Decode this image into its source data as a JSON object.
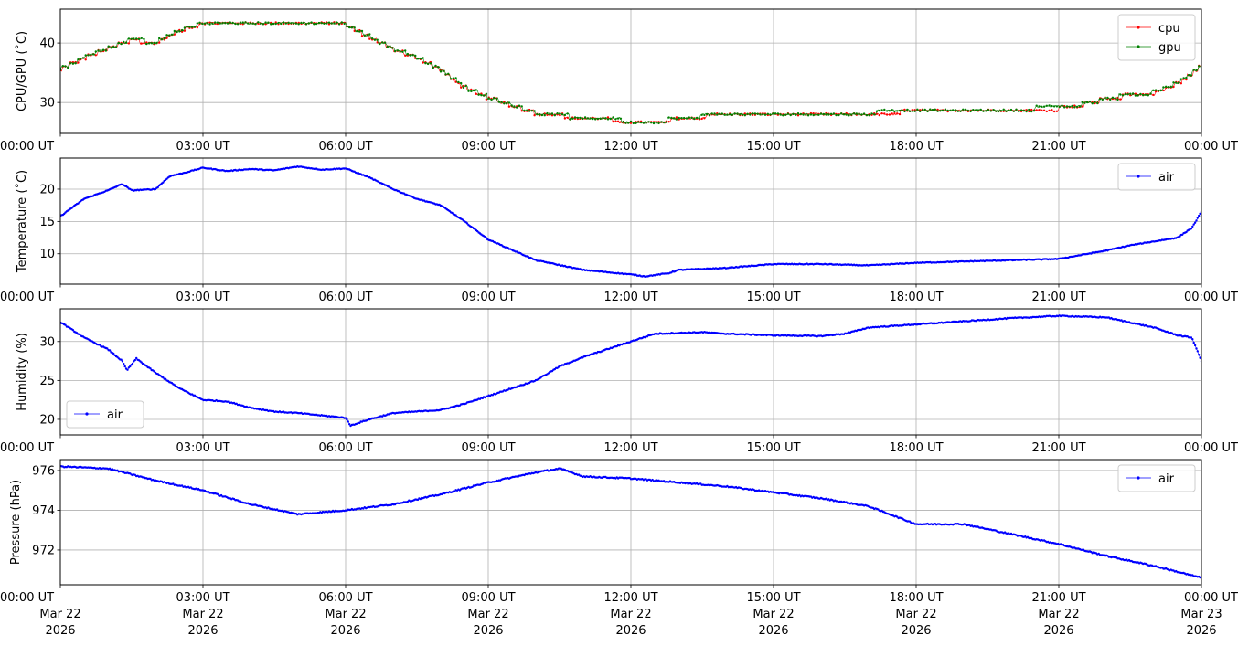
{
  "colors": {
    "cpu": "#ff0000",
    "gpu": "#008000",
    "air": "#0000ff",
    "grid": "#b0b0b0"
  },
  "x_tick_labels": [
    "00:00 UT",
    "03:00 UT",
    "06:00 UT",
    "09:00 UT",
    "12:00 UT",
    "15:00 UT",
    "18:00 UT",
    "21:00 UT",
    "00:00 UT"
  ],
  "x_tick_date_lines": [
    [
      "Mar 22",
      "2026"
    ],
    [
      "Mar 22",
      "2026"
    ],
    [
      "Mar 22",
      "2026"
    ],
    [
      "Mar 22",
      "2026"
    ],
    [
      "Mar 22",
      "2026"
    ],
    [
      "Mar 22",
      "2026"
    ],
    [
      "Mar 22",
      "2026"
    ],
    [
      "Mar 22",
      "2026"
    ],
    [
      "Mar 23",
      "2026"
    ]
  ],
  "chart_data": [
    {
      "type": "line",
      "ylabel": "CPU/GPU (˚C)",
      "xlim": [
        "2026-03-22T00:00Z",
        "2026-03-23T00:00Z"
      ],
      "ylim": [
        24.8,
        45.7
      ],
      "yticks": [
        30,
        40
      ],
      "grid": true,
      "legend_position": "upper right",
      "series": [
        {
          "name": "cpu",
          "color": "#ff0000",
          "x_hours": [
            0,
            0.5,
            1,
            1.5,
            2,
            2.5,
            3,
            3.5,
            4,
            4.5,
            5,
            5.5,
            6,
            6.5,
            7,
            7.5,
            8,
            8.5,
            9,
            9.5,
            10,
            11,
            12,
            12.5,
            13,
            14,
            15,
            16,
            17,
            18,
            19,
            20,
            21,
            21.5,
            22,
            22.5,
            23,
            23.5,
            24
          ],
          "values": [
            35.5,
            37.5,
            39,
            40.5,
            40,
            42,
            43.2,
            43.3,
            43.2,
            43.1,
            43.1,
            43.0,
            43.0,
            41.0,
            39.0,
            37.5,
            35.5,
            32.5,
            30.8,
            29.5,
            28.2,
            27.3,
            26.8,
            26.6,
            27.2,
            28.0,
            28.1,
            28.2,
            28.2,
            28.4,
            28.6,
            28.8,
            29.0,
            29.6,
            30.6,
            31.2,
            31.6,
            33.2,
            36.0
          ]
        },
        {
          "name": "gpu",
          "color": "#008000",
          "x_hours": [
            0,
            0.5,
            1,
            1.5,
            2,
            2.5,
            3,
            3.5,
            4,
            4.5,
            5,
            5.5,
            6,
            6.5,
            7,
            7.5,
            8,
            8.5,
            9,
            9.5,
            10,
            11,
            12,
            12.5,
            13,
            14,
            15,
            16,
            17,
            18,
            19,
            20,
            21,
            21.5,
            22,
            22.5,
            23,
            23.5,
            24
          ],
          "values": [
            35.6,
            37.6,
            39.1,
            40.6,
            40.1,
            42.1,
            43.3,
            43.4,
            43.3,
            43.2,
            43.2,
            43.1,
            43.1,
            41.1,
            39.1,
            37.6,
            35.6,
            32.6,
            30.9,
            29.6,
            28.3,
            27.4,
            26.9,
            26.7,
            27.3,
            28.1,
            28.2,
            28.3,
            28.3,
            28.5,
            28.7,
            28.9,
            29.1,
            29.7,
            30.7,
            31.3,
            31.7,
            33.3,
            36.1
          ]
        }
      ]
    },
    {
      "type": "line",
      "ylabel": "Temperature (˚C)",
      "xlim": [
        "2026-03-22T00:00Z",
        "2026-03-23T00:00Z"
      ],
      "ylim": [
        5.3,
        24.8
      ],
      "yticks": [
        10,
        15,
        20
      ],
      "grid": true,
      "legend_position": "upper right",
      "series": [
        {
          "name": "air",
          "color": "#0000ff",
          "x_hours": [
            0,
            0.5,
            1,
            1.3,
            1.5,
            2,
            2.3,
            2.6,
            3,
            3.5,
            4,
            4.5,
            5,
            5.5,
            6,
            6.5,
            7,
            7.5,
            8,
            8.5,
            9,
            10,
            11,
            12,
            12.3,
            12.8,
            13,
            14,
            15,
            16,
            17,
            18,
            19,
            20,
            21,
            22,
            22.5,
            23,
            23.5,
            23.8,
            24
          ],
          "values": [
            15.8,
            18.5,
            19.8,
            20.8,
            19.8,
            20.0,
            22.0,
            22.5,
            23.3,
            22.8,
            23.1,
            22.9,
            23.5,
            23.0,
            23.2,
            21.8,
            20.0,
            18.5,
            17.5,
            15.0,
            12.2,
            9.0,
            7.5,
            6.8,
            6.5,
            7.0,
            7.5,
            7.8,
            8.4,
            8.4,
            8.2,
            8.6,
            8.8,
            9.0,
            9.2,
            10.5,
            11.3,
            11.9,
            12.5,
            14.0,
            16.5
          ]
        }
      ]
    },
    {
      "type": "line",
      "ylabel": "Humidity (%)",
      "xlim": [
        "2026-03-22T00:00Z",
        "2026-03-23T00:00Z"
      ],
      "ylim": [
        18.0,
        34.2
      ],
      "yticks": [
        20,
        25,
        30
      ],
      "grid": true,
      "legend_position": "lower left",
      "series": [
        {
          "name": "air",
          "color": "#0000ff",
          "x_hours": [
            0,
            0.5,
            1,
            1.3,
            1.4,
            1.6,
            2,
            2.5,
            3,
            3.5,
            4,
            4.5,
            5,
            5.5,
            6,
            6.1,
            6.5,
            7,
            7.5,
            8,
            8.5,
            9,
            9.5,
            10,
            10.5,
            11,
            11.5,
            12,
            12.5,
            13,
            13.5,
            14,
            15,
            16,
            16.5,
            17,
            17.5,
            18,
            19,
            20,
            21,
            22,
            23,
            23.5,
            23.8,
            24
          ],
          "values": [
            32.5,
            30.5,
            29.0,
            27.5,
            26.3,
            27.8,
            26.0,
            24.0,
            22.5,
            22.3,
            21.5,
            21.0,
            20.8,
            20.5,
            20.2,
            19.2,
            20.0,
            20.8,
            21.0,
            21.2,
            22.0,
            23.0,
            24.0,
            25.0,
            26.8,
            28.0,
            29.0,
            30.0,
            31.0,
            31.1,
            31.2,
            31.0,
            30.8,
            30.7,
            31.0,
            31.8,
            32.0,
            32.2,
            32.6,
            33.0,
            33.3,
            33.1,
            31.8,
            30.8,
            30.5,
            27.5
          ]
        }
      ]
    },
    {
      "type": "line",
      "ylabel": "Pressure (hPa)",
      "xlim": [
        "2026-03-22T00:00Z",
        "2026-03-23T00:00Z"
      ],
      "ylim": [
        970.25,
        976.55
      ],
      "yticks": [
        972,
        974,
        976
      ],
      "grid": true,
      "legend_position": "upper right",
      "series": [
        {
          "name": "air",
          "color": "#0000ff",
          "x_hours": [
            0,
            1,
            2,
            3,
            4,
            5,
            5.5,
            6,
            7,
            8,
            9,
            10,
            10.5,
            11,
            12,
            13,
            14,
            15,
            16,
            17,
            18,
            19,
            20,
            21,
            22,
            23,
            24
          ],
          "values": [
            976.2,
            976.1,
            975.5,
            975.0,
            974.3,
            973.8,
            973.9,
            974.0,
            974.3,
            974.8,
            975.4,
            975.9,
            976.1,
            975.7,
            975.6,
            975.4,
            975.2,
            974.9,
            974.6,
            974.2,
            973.3,
            973.3,
            972.8,
            972.3,
            971.7,
            971.2,
            970.6
          ]
        }
      ]
    }
  ]
}
